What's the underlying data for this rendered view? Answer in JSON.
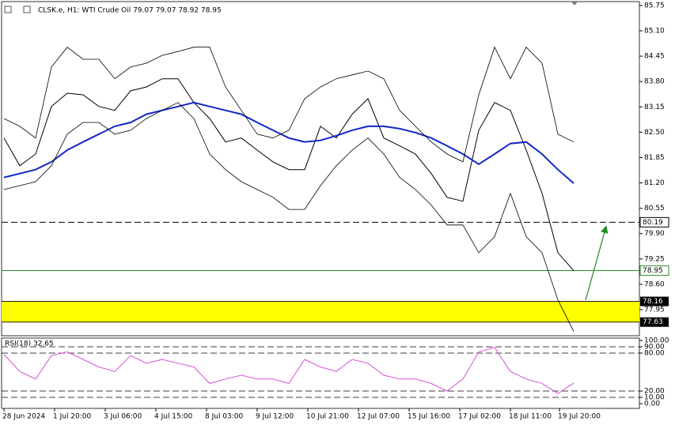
{
  "chart_data": [
    {
      "type": "line",
      "title": "CLSK.e, H1:  WTI Crude Oil  79.07 79.07 78.92 78.95",
      "x": [
        0,
        2,
        4,
        6,
        8,
        10,
        12,
        14,
        16,
        18,
        20,
        22,
        24,
        26,
        28,
        30,
        32,
        34,
        36,
        38,
        40,
        42,
        44,
        46,
        48,
        50,
        52,
        54,
        56,
        58,
        60,
        62,
        64,
        66,
        68,
        70,
        72
      ],
      "xlim": [
        0,
        80
      ],
      "xticks": [
        {
          "value": 0,
          "label": "28 Jun 2024"
        },
        {
          "value": 6.4,
          "label": "1 Jul 20:00"
        },
        {
          "value": 12.8,
          "label": "3 Jul 06:00"
        },
        {
          "value": 19.2,
          "label": "4 Jul 15:00"
        },
        {
          "value": 25.6,
          "label": "8 Jul 03:00"
        },
        {
          "value": 32,
          "label": "9 Jul 12:00"
        },
        {
          "value": 38.4,
          "label": "10 Jul 21:00"
        },
        {
          "value": 44.8,
          "label": "12 Jul 07:00"
        },
        {
          "value": 51.2,
          "label": "15 Jul 16:00"
        },
        {
          "value": 57.6,
          "label": "17 Jul 02:00"
        },
        {
          "value": 64,
          "label": "18 Jul 11:00"
        },
        {
          "value": 70.2,
          "label": "19 Jul 20:00"
        }
      ],
      "ylim": [
        77.3,
        85.85
      ],
      "yticks": [
        85.75,
        {
          "value": 85.1,
          "label": "85.10"
        },
        84.45,
        {
          "value": 83.8,
          "label": "83.80"
        },
        83.15,
        {
          "value": 82.5,
          "label": "82.50"
        },
        81.85,
        {
          "value": 81.2,
          "label": "81.20"
        },
        80.55,
        {
          "value": 79.9,
          "label": "79.90"
        },
        79.25,
        {
          "value": 78.6,
          "label": "78.60"
        },
        77.95
      ],
      "series": [
        {
          "color": "#000000",
          "width": 1,
          "values": [
            82.35,
            81.64,
            81.94,
            83.16,
            83.5,
            83.46,
            83.16,
            83.06,
            83.56,
            83.66,
            83.87,
            83.87,
            83.26,
            82.85,
            82.25,
            82.35,
            82.04,
            81.74,
            81.54,
            81.54,
            82.65,
            82.35,
            82.96,
            83.36,
            82.35,
            82.15,
            81.94,
            81.44,
            80.83,
            80.73,
            82.55,
            83.26,
            83.06,
            82.04,
            80.93,
            79.41,
            78.95
          ]
        },
        {
          "color": "#1426c8",
          "width": 2,
          "values": [
            81.34,
            81.44,
            81.54,
            81.74,
            82.04,
            82.25,
            82.45,
            82.65,
            82.75,
            82.96,
            83.06,
            83.16,
            83.26,
            83.16,
            83.06,
            82.96,
            82.75,
            82.55,
            82.35,
            82.25,
            82.29,
            82.41,
            82.55,
            82.65,
            82.65,
            82.59,
            82.49,
            82.35,
            82.15,
            81.94,
            81.68,
            81.94,
            82.21,
            82.25,
            81.94,
            81.54,
            81.19
          ]
        },
        {
          "color": "#000000",
          "width": 0.8,
          "values": [
            82.85,
            82.65,
            82.35,
            84.17,
            84.68,
            84.37,
            84.37,
            83.87,
            84.17,
            84.27,
            84.47,
            84.57,
            84.68,
            84.68,
            83.66,
            83.06,
            82.45,
            82.35,
            82.55,
            83.36,
            83.66,
            83.87,
            83.97,
            84.07,
            83.87,
            83.06,
            82.65,
            82.25,
            81.94,
            81.74,
            83.46,
            84.68,
            83.87,
            84.68,
            84.27,
            82.45,
            82.25
          ]
        },
        {
          "color": "#000000",
          "width": 0.8,
          "values": [
            81.03,
            81.13,
            81.23,
            81.64,
            82.45,
            82.75,
            82.75,
            82.45,
            82.55,
            82.85,
            83.06,
            83.26,
            82.85,
            81.94,
            81.54,
            81.23,
            81.03,
            80.83,
            80.52,
            80.52,
            81.13,
            81.64,
            82.04,
            82.35,
            81.94,
            81.34,
            81.03,
            80.63,
            80.12,
            80.12,
            79.41,
            79.82,
            80.93,
            79.82,
            79.41,
            78.2,
            77.39
          ]
        }
      ],
      "levels": [
        {
          "value": 80.19,
          "color": "#000000",
          "dashed": true
        },
        {
          "value": 78.95,
          "color": "#2e8b2e",
          "dashed": false
        }
      ],
      "zone": {
        "from": 77.63,
        "to": 78.16,
        "color": "#ffff00"
      }
    },
    {
      "type": "line",
      "title": "RSI(18) 32.65",
      "x": [
        0,
        2,
        4,
        6,
        8,
        10,
        12,
        14,
        16,
        18,
        20,
        22,
        24,
        26,
        28,
        30,
        32,
        34,
        36,
        38,
        40,
        42,
        44,
        46,
        48,
        50,
        52,
        54,
        56,
        58,
        60,
        62,
        64,
        66,
        68,
        70,
        72
      ],
      "xlim": [
        0,
        80
      ],
      "ylim": [
        0,
        100
      ],
      "yticks": [
        {
          "value": 100,
          "label": "100.00"
        },
        {
          "value": 90,
          "label": "90.00"
        },
        {
          "value": 80,
          "label": "80.00"
        },
        {
          "value": 20,
          "label": "20.00"
        },
        {
          "value": 10,
          "label": "10.00"
        },
        {
          "value": 0,
          "label": "0.00"
        }
      ],
      "grid": true,
      "series": [
        {
          "color": "#d94fd9",
          "width": 1,
          "values": [
            78,
            51,
            39,
            76,
            82,
            70,
            58,
            51,
            76,
            64,
            70,
            64,
            58,
            32,
            39,
            45,
            39,
            39,
            32,
            70,
            58,
            51,
            70,
            64,
            45,
            39,
            39,
            32,
            20,
            39,
            82,
            89,
            51,
            39,
            32,
            16,
            32.65
          ]
        }
      ]
    }
  ]
}
